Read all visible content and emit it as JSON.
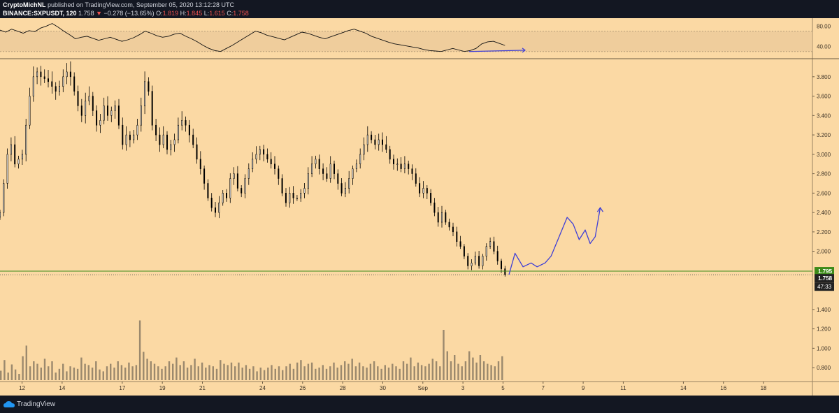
{
  "header": {
    "author": "CryptoMichNL",
    "published_text": "published on TradingView.com, September 05, 2020 13:12:28 UTC",
    "symbol": "BINANCE:SXPUSDT, 120",
    "last": "1.758",
    "change": "−0.278 (−13.65%)",
    "open_label": "O:",
    "open": "1.819",
    "high_label": "H:",
    "high": "1.845",
    "low_label": "L:",
    "low": "1.615",
    "close_label": "C:",
    "close": "1.758"
  },
  "footer": {
    "logo_text": "TradingView"
  },
  "colors": {
    "background": "#fbd9a4",
    "candle": "#000000",
    "drawing": "#3f3fd6",
    "support_line": "#3d8a1a",
    "chrome": "#131722"
  },
  "chart_data": {
    "type": "candlestick",
    "price_axis": {
      "range": [
        0.7,
        3.95
      ],
      "ticks": [
        "3.800",
        "3.600",
        "3.400",
        "3.200",
        "3.000",
        "2.800",
        "2.600",
        "2.400",
        "2.200",
        "2.000",
        "1.400",
        "1.200",
        "1.000",
        "0.800"
      ]
    },
    "x_axis": {
      "tick_labels": [
        "12",
        "14",
        "17",
        "19",
        "21",
        "24",
        "26",
        "28",
        "30",
        "Sep",
        "3",
        "5",
        "7",
        "9",
        "11",
        "14",
        "16",
        "18"
      ],
      "tick_days": [
        12,
        14,
        17,
        19,
        21,
        24,
        26,
        28,
        30,
        32,
        34,
        36,
        38,
        40,
        42,
        45,
        47,
        49
      ],
      "day_range": [
        10.9,
        51.3
      ]
    },
    "oscillator": {
      "ticks": [
        "80.00",
        "40.00"
      ],
      "band": [
        30,
        70
      ],
      "range": [
        20,
        90
      ],
      "values": [
        72,
        68,
        74,
        70,
        66,
        71,
        69,
        76,
        80,
        85,
        78,
        70,
        63,
        55,
        58,
        60,
        56,
        52,
        55,
        58,
        54,
        50,
        53,
        57,
        63,
        70,
        66,
        61,
        58,
        60,
        64,
        66,
        60,
        55,
        49,
        42,
        36,
        32,
        30,
        36,
        42,
        49,
        56,
        63,
        70,
        67,
        62,
        59,
        56,
        53,
        58,
        63,
        68,
        66,
        62,
        58,
        55,
        59,
        63,
        67,
        71,
        74,
        70,
        66,
        60,
        56,
        52,
        48,
        45,
        43,
        41,
        39,
        37,
        34,
        32,
        31,
        30,
        33,
        36,
        33,
        30,
        32,
        36,
        45,
        49,
        50,
        46,
        42
      ]
    },
    "price_series": {
      "start_day": 10.9,
      "step_day": 0.0833,
      "closes": [
        2.4,
        2.7,
        3.0,
        3.1,
        2.9,
        2.95,
        3.0,
        3.3,
        3.6,
        3.8,
        3.85,
        3.8,
        3.78,
        3.75,
        3.7,
        3.65,
        3.7,
        3.8,
        3.85,
        3.8,
        3.65,
        3.5,
        3.4,
        3.55,
        3.6,
        3.45,
        3.3,
        3.35,
        3.5,
        3.4,
        3.45,
        3.5,
        3.3,
        3.1,
        3.2,
        3.15,
        3.2,
        3.3,
        3.5,
        3.75,
        3.65,
        3.3,
        3.2,
        3.1,
        3.2,
        3.05,
        3.1,
        3.15,
        3.3,
        3.35,
        3.3,
        3.2,
        3.1,
        2.95,
        2.85,
        2.7,
        2.55,
        2.45,
        2.4,
        2.5,
        2.6,
        2.55,
        2.75,
        2.8,
        2.65,
        2.6,
        2.75,
        2.85,
        2.95,
        3.0,
        3.05,
        3.0,
        2.95,
        2.9,
        2.85,
        2.75,
        2.6,
        2.5,
        2.6,
        2.55,
        2.55,
        2.6,
        2.65,
        2.8,
        2.9,
        2.95,
        2.85,
        2.8,
        2.75,
        2.9,
        2.8,
        2.7,
        2.6,
        2.65,
        2.75,
        2.85,
        2.9,
        3.0,
        3.1,
        3.2,
        3.15,
        3.1,
        3.15,
        3.1,
        3.05,
        2.95,
        2.9,
        2.9,
        2.85,
        2.9,
        2.85,
        2.8,
        2.7,
        2.6,
        2.65,
        2.6,
        2.5,
        2.4,
        2.3,
        2.4,
        2.3,
        2.25,
        2.2,
        2.1,
        2.05,
        1.95,
        1.85,
        1.88,
        1.95,
        1.85,
        1.95,
        2.05,
        2.1,
        2.0,
        1.9,
        1.82,
        1.76
      ]
    },
    "last_price": "1.758",
    "support_level": "1.795",
    "countdown": "47:33",
    "volume_series": [
      0.15,
      0.32,
      0.12,
      0.25,
      0.17,
      0.1,
      0.38,
      0.55,
      0.22,
      0.3,
      0.26,
      0.2,
      0.34,
      0.22,
      0.3,
      0.12,
      0.18,
      0.26,
      0.14,
      0.22,
      0.2,
      0.18,
      0.36,
      0.26,
      0.24,
      0.2,
      0.3,
      0.17,
      0.14,
      0.22,
      0.26,
      0.2,
      0.3,
      0.24,
      0.2,
      0.28,
      0.22,
      0.24,
      0.95,
      0.45,
      0.34,
      0.3,
      0.26,
      0.22,
      0.18,
      0.22,
      0.3,
      0.26,
      0.36,
      0.24,
      0.3,
      0.2,
      0.24,
      0.34,
      0.22,
      0.28,
      0.2,
      0.24,
      0.22,
      0.18,
      0.32,
      0.26,
      0.24,
      0.28,
      0.22,
      0.28,
      0.2,
      0.24,
      0.18,
      0.22,
      0.14,
      0.2,
      0.16,
      0.2,
      0.24,
      0.18,
      0.22,
      0.16,
      0.22,
      0.26,
      0.18,
      0.28,
      0.32,
      0.22,
      0.26,
      0.28,
      0.18,
      0.2,
      0.24,
      0.18,
      0.22,
      0.28,
      0.2,
      0.24,
      0.3,
      0.26,
      0.34,
      0.22,
      0.28,
      0.22,
      0.2,
      0.26,
      0.3,
      0.22,
      0.18,
      0.24,
      0.2,
      0.26,
      0.22,
      0.18,
      0.3,
      0.26,
      0.36,
      0.22,
      0.28,
      0.24,
      0.22,
      0.26,
      0.34,
      0.3,
      0.22,
      0.8,
      0.46,
      0.3,
      0.4,
      0.26,
      0.22,
      0.3,
      0.46,
      0.36,
      0.28,
      0.4,
      0.3,
      0.26,
      0.24,
      0.22,
      0.3,
      0.38
    ]
  }
}
